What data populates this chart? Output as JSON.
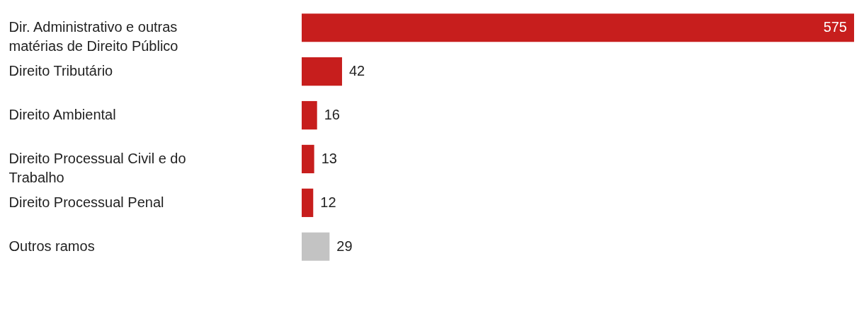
{
  "chart_data": {
    "type": "bar",
    "orientation": "horizontal",
    "tick_labels": "y",
    "data_labels": true,
    "categories": [
      "Dir. Administrativo e outras matérias de Direito Público",
      "Direito Tributário",
      "Direito Ambiental",
      "Direito Processual Civil e do Trabalho",
      "Direito Processual Penal",
      "Outros ramos"
    ],
    "values": [
      575,
      42,
      16,
      13,
      12,
      29
    ],
    "colors": [
      "#c71e1d",
      "#c71e1d",
      "#c71e1d",
      "#c71e1d",
      "#c71e1d",
      "#c3c3c3"
    ]
  }
}
